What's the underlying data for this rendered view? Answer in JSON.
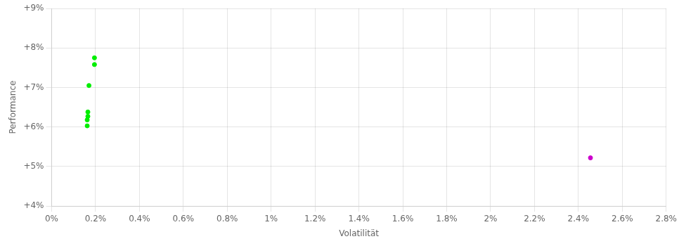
{
  "chart_data": {
    "type": "scatter",
    "x_label": "Volatilität",
    "y_label": "Performance",
    "xlim": [
      0.0,
      0.028
    ],
    "ylim": [
      0.04,
      0.09
    ],
    "xticks": [
      {
        "value": 0.0,
        "label": "0%"
      },
      {
        "value": 0.002,
        "label": "0.2%"
      },
      {
        "value": 0.004,
        "label": "0.4%"
      },
      {
        "value": 0.006,
        "label": "0.6%"
      },
      {
        "value": 0.008,
        "label": "0.8%"
      },
      {
        "value": 0.01,
        "label": "1%"
      },
      {
        "value": 0.012,
        "label": "1.2%"
      },
      {
        "value": 0.014,
        "label": "1.4%"
      },
      {
        "value": 0.016,
        "label": "1.6%"
      },
      {
        "value": 0.018,
        "label": "1.8%"
      },
      {
        "value": 0.02,
        "label": "2%"
      },
      {
        "value": 0.022,
        "label": "2.2%"
      },
      {
        "value": 0.024,
        "label": "2.4%"
      },
      {
        "value": 0.026,
        "label": "2.6%"
      },
      {
        "value": 0.028,
        "label": "2.8%"
      }
    ],
    "yticks": [
      {
        "value": 0.04,
        "label": "+4%"
      },
      {
        "value": 0.05,
        "label": "+5%"
      },
      {
        "value": 0.06,
        "label": "+6%"
      },
      {
        "value": 0.07,
        "label": "+7%"
      },
      {
        "value": 0.08,
        "label": "+8%"
      },
      {
        "value": 0.09,
        "label": "+9%"
      }
    ],
    "grid": true,
    "series": [
      {
        "color": "#00ee00",
        "x": [
          0.00195,
          0.00195,
          0.0017,
          0.00165,
          0.00165,
          0.00162,
          0.00162
        ],
        "values": [
          0.0775,
          0.0758,
          0.0705,
          0.0638,
          0.0627,
          0.0618,
          0.0603
        ]
      },
      {
        "color": "#cc00cc",
        "x": [
          0.02455
        ],
        "values": [
          0.0522
        ]
      }
    ]
  }
}
